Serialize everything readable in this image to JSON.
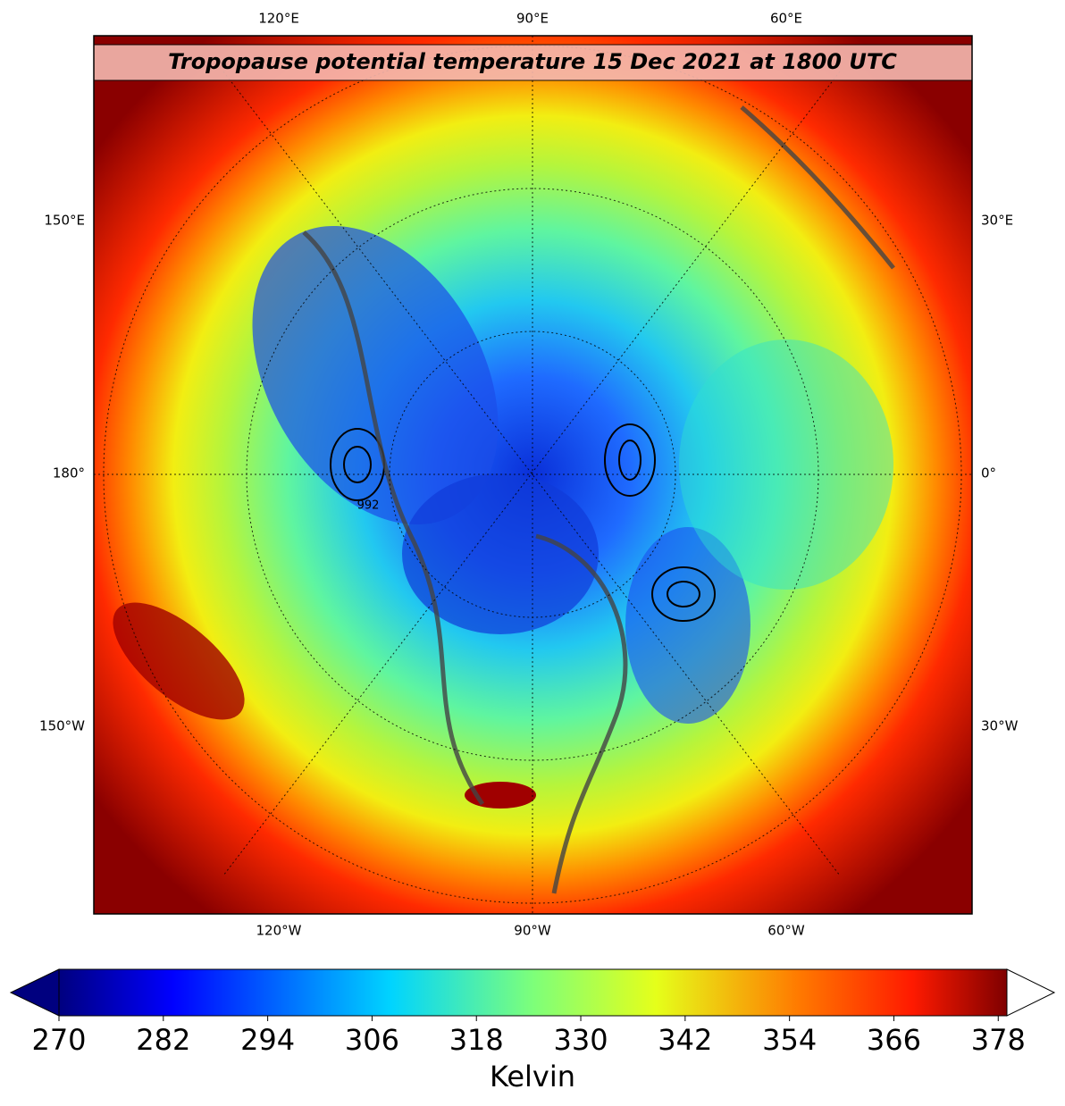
{
  "title": "Tropopause potential temperature 15 Dec 2021 at 1800 UTC",
  "map": {
    "top_labels": [
      "120°E",
      "90°E",
      "60°E"
    ],
    "bottom_labels": [
      "120°W",
      "90°W",
      "60°W"
    ],
    "left_labels": [
      "150°E",
      "180°",
      "150°W"
    ],
    "right_labels": [
      "30°E",
      "0°",
      "30°W"
    ],
    "contour_labels": [
      "992"
    ]
  },
  "colorbar": {
    "label": "Kelvin",
    "range": [
      270,
      379
    ],
    "ticks": [
      270,
      282,
      294,
      306,
      318,
      330,
      342,
      354,
      366,
      378
    ]
  }
}
